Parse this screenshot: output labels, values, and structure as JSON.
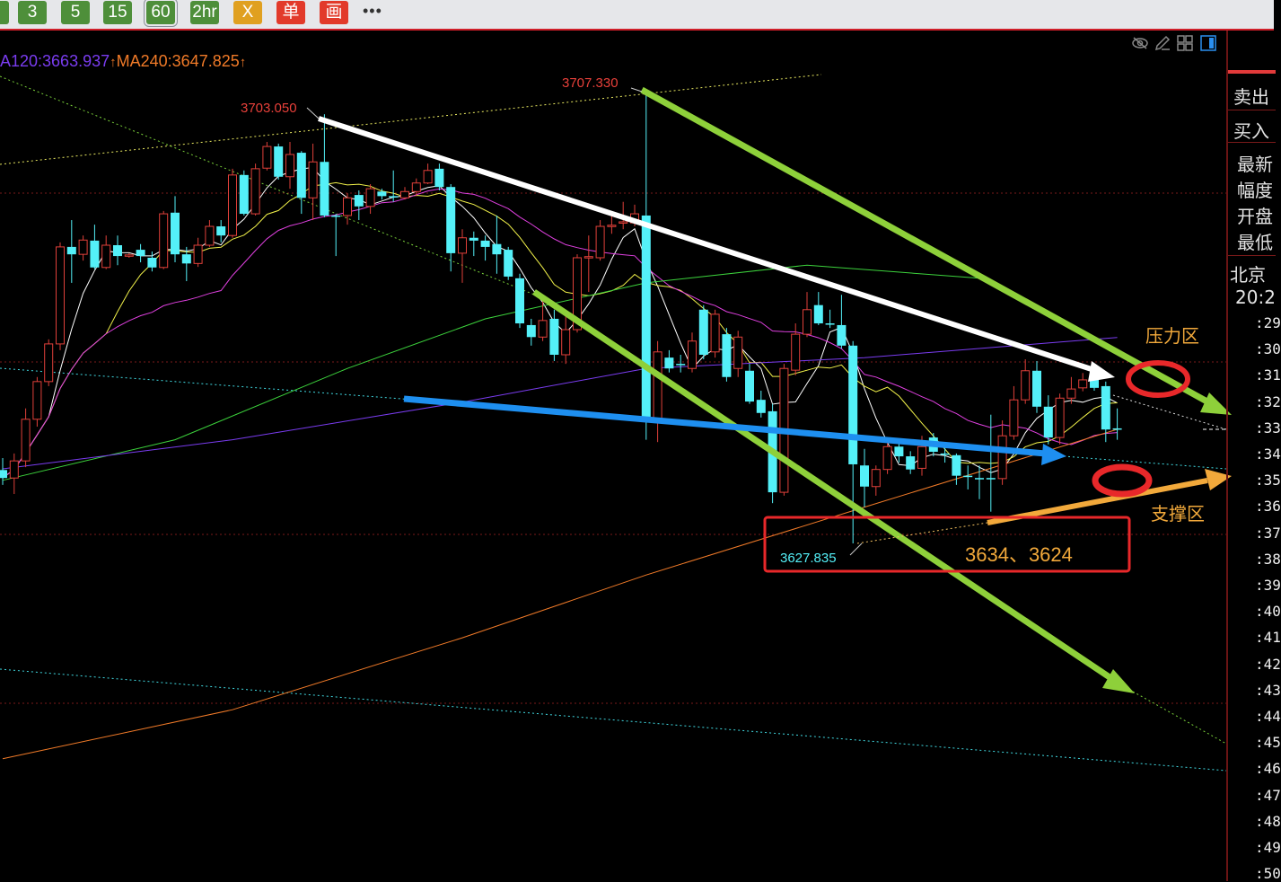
{
  "toolbar": {
    "buttons": [
      {
        "label": "3",
        "style": "green"
      },
      {
        "label": "5",
        "style": "green"
      },
      {
        "label": "15",
        "style": "green"
      },
      {
        "label": "60",
        "style": "green",
        "selected": true
      },
      {
        "label": "2hr",
        "style": "green"
      },
      {
        "label": "X",
        "style": "orange"
      },
      {
        "label": "单",
        "style": "red"
      },
      {
        "label": "画",
        "style": "red"
      }
    ],
    "more_label": "•••"
  },
  "ma_legend": {
    "ma120": "A120:3663.937",
    "ma120_arrow": "↑",
    "ma240": "MA240:3647.825",
    "ma240_arrow": "↑"
  },
  "chart_icons": [
    "eye-slash-icon",
    "pencil-icon",
    "grid-icon",
    "panel-toggle-icon"
  ],
  "colors": {
    "up": "#e0403a",
    "down": "#54f0f8",
    "ma5": "#ffffff",
    "ma10": "#f2f24a",
    "ma20": "#e040e0",
    "ma60": "#3cd23c",
    "ma120": "#7a3cf0",
    "ma240": "#f07a28",
    "annotation_orange": "#f2a93b",
    "arrow_green": "#8ed03a",
    "arrow_blue": "#1e8ff0",
    "box_red": "#e8282a"
  },
  "annotations": {
    "high1_label": "3703.050",
    "high2_label": "3707.330",
    "low_label": "3627.835",
    "support_levels": "3634、3624",
    "resistance_zone": "压力区",
    "support_zone": "支撑区"
  },
  "right_panel": {
    "sell": "卖出",
    "buy": "买入",
    "latest": "最新",
    "change": "幅度",
    "open": "开盘",
    "low": "最低",
    "beijing": "北京",
    "time": "20:2",
    "time_ticks": [
      ":29",
      ":30",
      ":31",
      ":32",
      ":33",
      ":34",
      ":35",
      ":36",
      ":37",
      ":38",
      ":39",
      ":40",
      ":41",
      ":42",
      ":43",
      ":44",
      ":45",
      ":46",
      ":47",
      ":48",
      ":49",
      ":50"
    ]
  },
  "chart_data": {
    "type": "candlestick",
    "ohlc_order": [
      "open",
      "close",
      "high",
      "low"
    ],
    "candles": [
      [
        3640.7,
        3639.3,
        3642.8,
        3638.1
      ],
      [
        3639.3,
        3642.3,
        3643.6,
        3636.5
      ],
      [
        3642.3,
        3649.6,
        3651.5,
        3641.2
      ],
      [
        3649.6,
        3656.2,
        3657.0,
        3648.3
      ],
      [
        3656.2,
        3662.8,
        3663.6,
        3655.4
      ],
      [
        3662.8,
        3679.8,
        3680.6,
        3661.7
      ],
      [
        3679.8,
        3678.5,
        3684.5,
        3673.5
      ],
      [
        3678.5,
        3681.0,
        3681.8,
        3677.4
      ],
      [
        3680.9,
        3676.2,
        3683.7,
        3675.9
      ],
      [
        3676.2,
        3680.1,
        3681.8,
        3675.9
      ],
      [
        3680.1,
        3678.2,
        3681.8,
        3676.6
      ],
      [
        3678.2,
        3678.4,
        3678.7,
        3677.9
      ],
      [
        3679.3,
        3678.2,
        3680.3,
        3677.1
      ],
      [
        3677.9,
        3676.2,
        3679.0,
        3675.5
      ],
      [
        3676.2,
        3685.6,
        3686.1,
        3675.9
      ],
      [
        3685.8,
        3678.5,
        3688.7,
        3677.1
      ],
      [
        3678.5,
        3676.9,
        3679.8,
        3673.8
      ],
      [
        3676.9,
        3680.1,
        3681.4,
        3676.3
      ],
      [
        3680.1,
        3683.4,
        3684.5,
        3679.8
      ],
      [
        3683.4,
        3681.8,
        3684.5,
        3680.6
      ],
      [
        3681.8,
        3692.4,
        3693.5,
        3681.4
      ],
      [
        3692.4,
        3685.6,
        3693.2,
        3685.3
      ],
      [
        3685.6,
        3693.5,
        3694.4,
        3685.3
      ],
      [
        3693.6,
        3697.4,
        3698.2,
        3693.2
      ],
      [
        3697.4,
        3692.1,
        3697.9,
        3691.6
      ],
      [
        3692.1,
        3696.0,
        3698.2,
        3690.0
      ],
      [
        3696.3,
        3688.4,
        3696.6,
        3685.6
      ],
      [
        3688.4,
        3694.7,
        3697.9,
        3684.5
      ],
      [
        3694.7,
        3685.3,
        3703.05,
        3685.0
      ],
      [
        3685.3,
        3685.2,
        3685.6,
        3678.2
      ],
      [
        3685.3,
        3688.4,
        3689.2,
        3683.7
      ],
      [
        3688.9,
        3686.9,
        3689.7,
        3684.5
      ],
      [
        3686.9,
        3690.0,
        3690.8,
        3685.6
      ],
      [
        3689.5,
        3688.7,
        3690.0,
        3688.1
      ],
      [
        3688.7,
        3688.6,
        3693.2,
        3687.7
      ],
      [
        3688.4,
        3689.5,
        3690.3,
        3688.1
      ],
      [
        3689.5,
        3691.0,
        3691.8,
        3688.7
      ],
      [
        3691.0,
        3693.2,
        3694.4,
        3690.8
      ],
      [
        3693.5,
        3690.3,
        3694.4,
        3689.7
      ],
      [
        3690.3,
        3678.7,
        3690.8,
        3675.5
      ],
      [
        3678.7,
        3681.4,
        3682.9,
        3673.5
      ],
      [
        3681.4,
        3680.9,
        3682.5,
        3678.2
      ],
      [
        3680.9,
        3679.8,
        3681.8,
        3677.4
      ],
      [
        3680.3,
        3678.5,
        3685.3,
        3675.1
      ],
      [
        3679.3,
        3674.6,
        3679.8,
        3674.0
      ],
      [
        3674.3,
        3666.4,
        3675.1,
        3665.6
      ],
      [
        3666.1,
        3664.0,
        3667.2,
        3662.5
      ],
      [
        3664.0,
        3666.9,
        3670.3,
        3663.3
      ],
      [
        3667.2,
        3660.9,
        3668.8,
        3659.8
      ],
      [
        3660.9,
        3665.3,
        3668.0,
        3659.3
      ],
      [
        3665.3,
        3677.9,
        3678.5,
        3664.8
      ],
      [
        3677.9,
        3678.1,
        3681.8,
        3671.9
      ],
      [
        3677.9,
        3683.4,
        3684.5,
        3677.4
      ],
      [
        3683.4,
        3683.6,
        3685.6,
        3682.1
      ],
      [
        3684.0,
        3684.2,
        3687.7,
        3682.9
      ],
      [
        3684.0,
        3685.6,
        3687.2,
        3683.4
      ],
      [
        3685.3,
        3649.9,
        3707.33,
        3646.0
      ],
      [
        3649.1,
        3661.4,
        3663.3,
        3645.6
      ],
      [
        3660.4,
        3658.5,
        3661.7,
        3657.8
      ],
      [
        3659.3,
        3659.2,
        3660.9,
        3657.8
      ],
      [
        3658.5,
        3663.3,
        3664.8,
        3657.8
      ],
      [
        3668.8,
        3660.9,
        3669.6,
        3660.1
      ],
      [
        3661.4,
        3668.0,
        3668.8,
        3660.4
      ],
      [
        3664.5,
        3657.0,
        3665.6,
        3656.2
      ],
      [
        3658.5,
        3664.0,
        3665.1,
        3657.0
      ],
      [
        3658.1,
        3652.7,
        3659.3,
        3652.3
      ],
      [
        3653.0,
        3650.7,
        3654.6,
        3649.9
      ],
      [
        3651.0,
        3636.8,
        3652.3,
        3634.9
      ],
      [
        3636.8,
        3658.5,
        3659.3,
        3636.2
      ],
      [
        3658.2,
        3664.5,
        3666.4,
        3657.3
      ],
      [
        3664.5,
        3668.8,
        3671.9,
        3664.0
      ],
      [
        3669.6,
        3666.4,
        3671.9,
        3666.1
      ],
      [
        3666.4,
        3666.3,
        3668.8,
        3665.6
      ],
      [
        3666.1,
        3662.5,
        3671.4,
        3662.0
      ],
      [
        3662.5,
        3641.7,
        3663.3,
        3627.835
      ],
      [
        3641.5,
        3637.8,
        3644.4,
        3634.2
      ],
      [
        3637.8,
        3640.8,
        3641.5,
        3636.2
      ],
      [
        3640.8,
        3644.8,
        3646.3,
        3640.0
      ],
      [
        3644.8,
        3643.1,
        3646.0,
        3642.0
      ],
      [
        3643.1,
        3640.8,
        3644.0,
        3640.0
      ],
      [
        3641.0,
        3644.8,
        3646.7,
        3639.7
      ],
      [
        3646.4,
        3643.9,
        3647.2,
        3643.1
      ],
      [
        3643.6,
        3643.5,
        3645.2,
        3642.0
      ],
      [
        3643.3,
        3639.7,
        3643.6,
        3638.1
      ],
      [
        3639.7,
        3639.6,
        3641.5,
        3637.3
      ],
      [
        3639.3,
        3639.2,
        3641.5,
        3635.6
      ],
      [
        3639.3,
        3639.2,
        3650.4,
        3633.4
      ],
      [
        3639.2,
        3646.7,
        3649.4,
        3638.1
      ],
      [
        3646.7,
        3653.0,
        3655.4,
        3646.0
      ],
      [
        3653.0,
        3658.1,
        3660.1,
        3652.3
      ],
      [
        3658.1,
        3651.8,
        3659.8,
        3650.7
      ],
      [
        3651.8,
        3646.4,
        3653.8,
        3645.2
      ],
      [
        3646.4,
        3653.3,
        3654.1,
        3645.2
      ],
      [
        3653.3,
        3654.9,
        3657.0,
        3652.3
      ],
      [
        3655.1,
        3656.5,
        3657.7,
        3654.5
      ],
      [
        3656.5,
        3655.1,
        3657.7,
        3654.6
      ],
      [
        3655.4,
        3647.8,
        3656.2,
        3645.6
      ],
      [
        3648.0,
        3647.9,
        3651.5,
        3646.0
      ]
    ],
    "moving_averages_computed": [
      5,
      10,
      20
    ],
    "ma_series": [
      {
        "name": "MA60",
        "points": [
          [
            0,
            3638.9
          ],
          [
            15,
            3646.0
          ],
          [
            30,
            3658.5
          ],
          [
            42,
            3667.2
          ],
          [
            56,
            3673.5
          ],
          [
            70,
            3676.6
          ],
          [
            85,
            3674.3
          ],
          [
            95,
            3664.0
          ]
        ]
      },
      {
        "name": "MA120",
        "points": [
          [
            0,
            3640.9
          ],
          [
            20,
            3646.0
          ],
          [
            40,
            3652.6
          ],
          [
            56,
            3658.5
          ],
          [
            75,
            3660.4
          ],
          [
            97,
            3663.937
          ]
        ]
      },
      {
        "name": "MA240",
        "points": [
          [
            0,
            3590.1
          ],
          [
            20,
            3598.7
          ],
          [
            40,
            3611.3
          ],
          [
            56,
            3622.3
          ],
          [
            75,
            3634.2
          ],
          [
            97,
            3647.825
          ]
        ]
      }
    ],
    "yrange": [
      3560,
      3712
    ],
    "grid": "dotted horizontal"
  }
}
